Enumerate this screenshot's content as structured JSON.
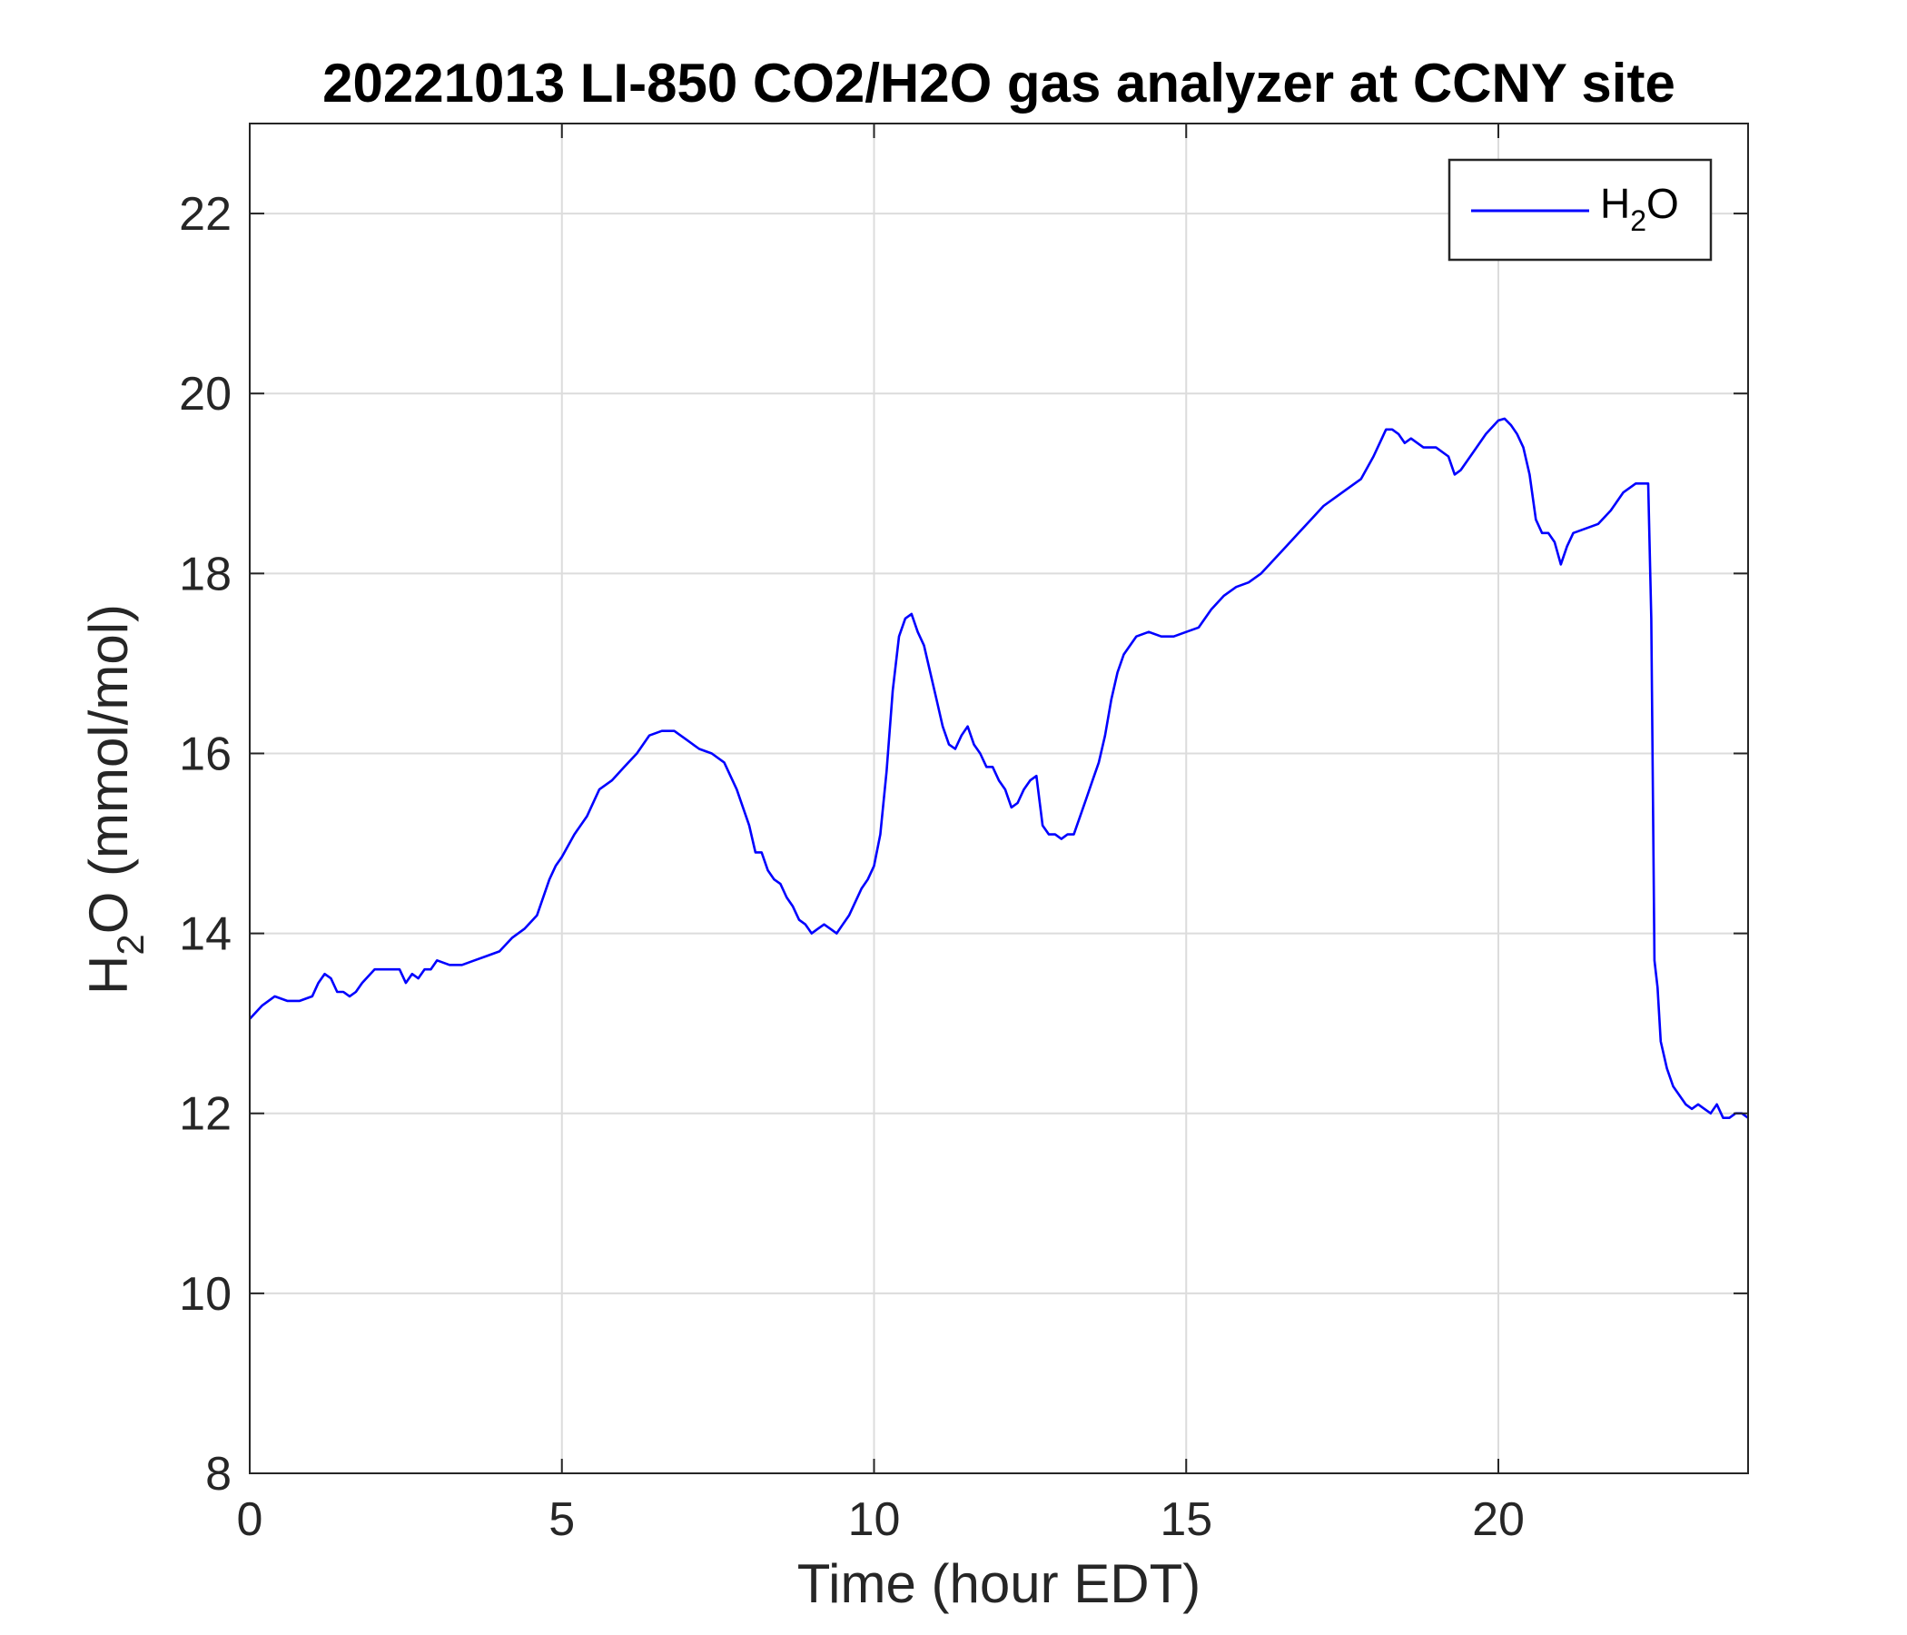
{
  "chart_data": {
    "type": "line",
    "title": "20221013 LI-850 CO2/H2O gas analyzer at CCNY site",
    "xlabel": "Time (hour EDT)",
    "ylabel": {
      "base": "H",
      "sub": "2",
      "rest": "O (mmol/mol)"
    },
    "xlim": [
      0,
      24
    ],
    "ylim": [
      8,
      23
    ],
    "xticks": [
      0,
      5,
      10,
      15,
      20
    ],
    "yticks": [
      8,
      10,
      12,
      14,
      16,
      18,
      20,
      22
    ],
    "grid": true,
    "legend_position": "top-right",
    "line_color": "#0000ff",
    "series": [
      {
        "name": {
          "base": "H",
          "sub": "2",
          "rest": "O"
        },
        "x": [
          0,
          0.2,
          0.4,
          0.6,
          0.8,
          1.0,
          1.1,
          1.2,
          1.3,
          1.4,
          1.5,
          1.6,
          1.7,
          1.8,
          2.0,
          2.2,
          2.4,
          2.5,
          2.6,
          2.7,
          2.8,
          2.9,
          3.0,
          3.2,
          3.4,
          3.6,
          3.8,
          4.0,
          4.2,
          4.4,
          4.6,
          4.8,
          4.9,
          5.0,
          5.2,
          5.4,
          5.6,
          5.8,
          6.0,
          6.2,
          6.4,
          6.6,
          6.8,
          7.0,
          7.2,
          7.4,
          7.6,
          7.8,
          8.0,
          8.1,
          8.2,
          8.3,
          8.4,
          8.5,
          8.6,
          8.7,
          8.8,
          8.9,
          9.0,
          9.1,
          9.2,
          9.3,
          9.4,
          9.5,
          9.6,
          9.7,
          9.8,
          9.9,
          10.0,
          10.1,
          10.2,
          10.3,
          10.4,
          10.5,
          10.6,
          10.7,
          10.8,
          10.9,
          11.0,
          11.1,
          11.2,
          11.3,
          11.4,
          11.5,
          11.6,
          11.7,
          11.8,
          11.9,
          12.0,
          12.1,
          12.2,
          12.3,
          12.4,
          12.5,
          12.6,
          12.7,
          12.8,
          12.9,
          13.0,
          13.1,
          13.2,
          13.3,
          13.4,
          13.5,
          13.6,
          13.7,
          13.8,
          13.9,
          14.0,
          14.2,
          14.4,
          14.6,
          14.8,
          15.0,
          15.2,
          15.4,
          15.6,
          15.8,
          16.0,
          16.2,
          16.4,
          16.6,
          16.8,
          17.0,
          17.2,
          17.4,
          17.6,
          17.8,
          18.0,
          18.1,
          18.2,
          18.3,
          18.4,
          18.5,
          18.6,
          18.8,
          19.0,
          19.2,
          19.3,
          19.4,
          19.6,
          19.8,
          20.0,
          20.1,
          20.2,
          20.3,
          20.4,
          20.5,
          20.6,
          20.7,
          20.8,
          20.9,
          21.0,
          21.1,
          21.2,
          21.4,
          21.6,
          21.8,
          22.0,
          22.2,
          22.4,
          22.45,
          22.5,
          22.55,
          22.6,
          22.7,
          22.8,
          22.9,
          23.0,
          23.1,
          23.2,
          23.3,
          23.4,
          23.5,
          23.6,
          23.7,
          23.8,
          23.9,
          24.0
        ],
        "y": [
          13.05,
          13.2,
          13.3,
          13.25,
          13.25,
          13.3,
          13.45,
          13.55,
          13.5,
          13.35,
          13.35,
          13.3,
          13.35,
          13.45,
          13.6,
          13.6,
          13.6,
          13.45,
          13.55,
          13.5,
          13.6,
          13.6,
          13.7,
          13.65,
          13.65,
          13.7,
          13.75,
          13.8,
          13.95,
          14.05,
          14.2,
          14.6,
          14.75,
          14.85,
          15.1,
          15.3,
          15.6,
          15.7,
          15.85,
          16.0,
          16.2,
          16.25,
          16.25,
          16.15,
          16.05,
          16.0,
          15.9,
          15.6,
          15.2,
          14.9,
          14.9,
          14.7,
          14.6,
          14.55,
          14.4,
          14.3,
          14.15,
          14.1,
          14.0,
          14.05,
          14.1,
          14.05,
          14.0,
          14.1,
          14.2,
          14.35,
          14.5,
          14.6,
          14.75,
          15.1,
          15.8,
          16.7,
          17.3,
          17.5,
          17.55,
          17.35,
          17.2,
          16.9,
          16.6,
          16.3,
          16.1,
          16.05,
          16.2,
          16.3,
          16.1,
          16.0,
          15.85,
          15.85,
          15.7,
          15.6,
          15.4,
          15.45,
          15.6,
          15.7,
          15.75,
          15.2,
          15.1,
          15.1,
          15.05,
          15.1,
          15.1,
          15.3,
          15.5,
          15.7,
          15.9,
          16.2,
          16.6,
          16.9,
          17.1,
          17.3,
          17.35,
          17.3,
          17.3,
          17.35,
          17.4,
          17.6,
          17.75,
          17.85,
          17.9,
          18.0,
          18.15,
          18.3,
          18.45,
          18.6,
          18.75,
          18.85,
          18.95,
          19.05,
          19.3,
          19.45,
          19.6,
          19.6,
          19.55,
          19.45,
          19.5,
          19.4,
          19.4,
          19.3,
          19.1,
          19.15,
          19.35,
          19.55,
          19.7,
          19.72,
          19.65,
          19.55,
          19.4,
          19.1,
          18.6,
          18.45,
          18.45,
          18.35,
          18.1,
          18.3,
          18.45,
          18.5,
          18.55,
          18.7,
          18.9,
          19.0,
          19.0,
          17.5,
          13.7,
          13.4,
          12.8,
          12.5,
          12.3,
          12.2,
          12.1,
          12.05,
          12.1,
          12.05,
          12.0,
          12.1,
          11.95,
          11.95,
          12.0,
          12.0,
          11.95
        ]
      }
    ]
  }
}
